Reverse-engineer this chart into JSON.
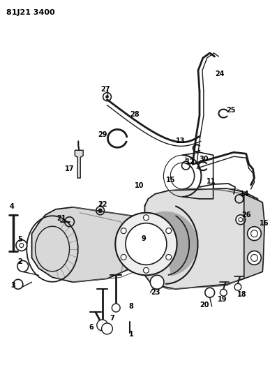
{
  "title": "81J21 3400",
  "bg_color": "#ffffff",
  "line_color": "#1a1a1a",
  "label_color": "#000000",
  "figsize": [
    3.87,
    5.33
  ],
  "dpi": 100
}
